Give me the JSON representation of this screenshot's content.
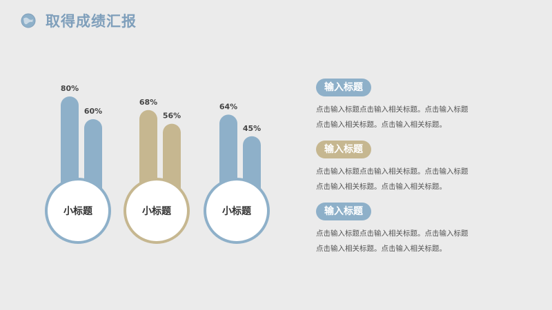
{
  "header": {
    "title": "取得成绩汇报",
    "icon": "globe-icon"
  },
  "colors": {
    "blue": "#8eb0c9",
    "gold": "#c6b790",
    "title": "#7f9fbb"
  },
  "chart_data": {
    "type": "bar",
    "unit": "%",
    "groups": [
      {
        "label": "小标题",
        "color": "#8eb0c9",
        "values": [
          80,
          60
        ],
        "labels": [
          "80%",
          "60%"
        ]
      },
      {
        "label": "小标题",
        "color": "#c6b790",
        "values": [
          68,
          56
        ],
        "labels": [
          "68%",
          "56%"
        ]
      },
      {
        "label": "小标题",
        "color": "#8eb0c9",
        "values": [
          64,
          45
        ],
        "labels": [
          "64%",
          "45%"
        ]
      }
    ],
    "ylim": [
      0,
      100
    ]
  },
  "items": [
    {
      "title": "输入标题",
      "color": "#8eb0c9",
      "line1": "点击输入标题点击输入相关标题。点击输入标题",
      "line2": "点击输入相关标题。点击输入相关标题。"
    },
    {
      "title": "输入标题",
      "color": "#c6b790",
      "line1": "点击输入标题点击输入相关标题。点击输入标题",
      "line2": "点击输入相关标题。点击输入相关标题。"
    },
    {
      "title": "输入标题",
      "color": "#8eb0c9",
      "line1": "点击输入标题点击输入相关标题。点击输入标题",
      "line2": "点击输入相关标题。点击输入相关标题。"
    }
  ]
}
